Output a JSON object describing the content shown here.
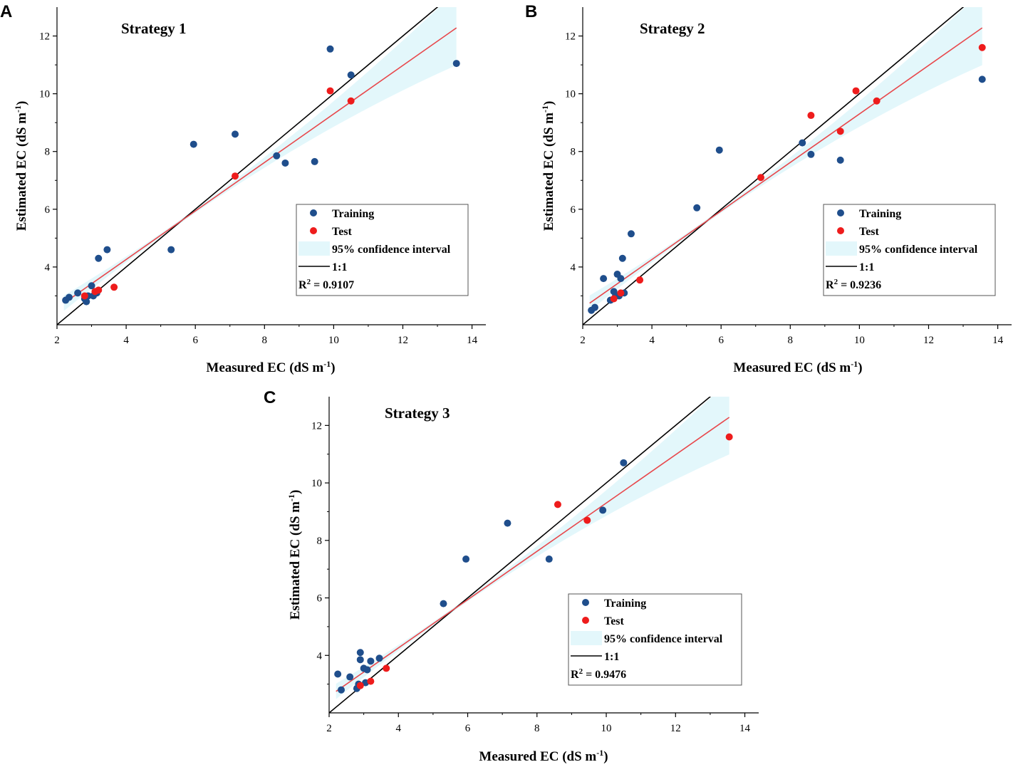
{
  "colors": {
    "training": "#1f4e8c",
    "test": "#ee1c1c",
    "fit_line": "#e8474b",
    "one_to_one": "#000000",
    "ci_fill": "#e3f7fb"
  },
  "legend_labels": {
    "training": "Training",
    "test": "Test",
    "ci": "95% confidence interval",
    "one_to_one": "1:1",
    "r2_prefix": "R",
    "r2_sup": "2"
  },
  "chart_data": [
    {
      "type": "scatter",
      "panel": "A",
      "title": "Strategy 1",
      "xlabel": "Measured EC (dS m",
      "ylabel": "Estimated EC (dS m",
      "label_sup": "-1",
      "label_close": ")",
      "xlim": [
        2,
        14.4
      ],
      "ylim": [
        2,
        13
      ],
      "xticks": [
        2,
        4,
        6,
        8,
        10,
        12,
        14
      ],
      "yticks": [
        4,
        6,
        8,
        10,
        12
      ],
      "r2": "= 0.9107",
      "fit_line": {
        "slope": 0.84,
        "intercept": 0.9
      },
      "training": [
        [
          2.25,
          2.85
        ],
        [
          2.35,
          2.95
        ],
        [
          2.6,
          3.1
        ],
        [
          2.8,
          2.9
        ],
        [
          2.85,
          2.8
        ],
        [
          2.9,
          3.0
        ],
        [
          3.0,
          3.35
        ],
        [
          3.05,
          3.0
        ],
        [
          3.15,
          3.1
        ],
        [
          3.2,
          4.3
        ],
        [
          3.45,
          4.6
        ],
        [
          5.3,
          4.6
        ],
        [
          5.95,
          8.25
        ],
        [
          7.15,
          8.6
        ],
        [
          8.35,
          7.85
        ],
        [
          8.6,
          7.6
        ],
        [
          9.45,
          7.65
        ],
        [
          9.9,
          11.55
        ],
        [
          10.5,
          10.65
        ],
        [
          13.55,
          11.05
        ]
      ],
      "test": [
        [
          2.8,
          3.0
        ],
        [
          3.1,
          3.15
        ],
        [
          3.2,
          3.2
        ],
        [
          3.65,
          3.3
        ],
        [
          7.15,
          7.15
        ],
        [
          9.9,
          10.1
        ],
        [
          10.5,
          9.75
        ]
      ]
    },
    {
      "type": "scatter",
      "panel": "B",
      "title": "Strategy 2",
      "xlabel": "Measured EC (dS m",
      "ylabel": "Estimated EC (dS m",
      "label_sup": "-1",
      "label_close": ")",
      "xlim": [
        2,
        14.4
      ],
      "ylim": [
        2,
        13
      ],
      "xticks": [
        2,
        4,
        6,
        8,
        10,
        12,
        14
      ],
      "yticks": [
        4,
        6,
        8,
        10,
        12
      ],
      "r2": "= 0.9236",
      "fit_line": {
        "slope": 0.84,
        "intercept": 0.9
      },
      "training": [
        [
          2.25,
          2.5
        ],
        [
          2.35,
          2.6
        ],
        [
          2.6,
          3.6
        ],
        [
          2.8,
          2.85
        ],
        [
          2.9,
          3.15
        ],
        [
          2.95,
          3.0
        ],
        [
          3.0,
          3.75
        ],
        [
          3.05,
          3.0
        ],
        [
          3.1,
          3.6
        ],
        [
          3.15,
          4.3
        ],
        [
          3.2,
          3.1
        ],
        [
          3.4,
          5.15
        ],
        [
          5.3,
          6.05
        ],
        [
          5.95,
          8.05
        ],
        [
          8.35,
          8.3
        ],
        [
          8.6,
          7.9
        ],
        [
          9.45,
          7.7
        ],
        [
          13.55,
          10.5
        ]
      ],
      "test": [
        [
          2.9,
          2.9
        ],
        [
          3.1,
          3.1
        ],
        [
          3.65,
          3.55
        ],
        [
          7.15,
          7.1
        ],
        [
          8.6,
          9.25
        ],
        [
          9.45,
          8.7
        ],
        [
          9.9,
          10.1
        ],
        [
          10.5,
          9.75
        ],
        [
          13.55,
          11.6
        ]
      ]
    },
    {
      "type": "scatter",
      "panel": "C",
      "title": "Strategy 3",
      "xlabel": "Measured EC (dS m",
      "ylabel": "Estimated EC (dS m",
      "label_sup": "-1",
      "label_close": ")",
      "xlim": [
        2,
        14.4
      ],
      "ylim": [
        2,
        13
      ],
      "xticks": [
        2,
        4,
        6,
        8,
        10,
        12,
        14
      ],
      "yticks": [
        4,
        6,
        8,
        10,
        12
      ],
      "r2": "= 0.9476",
      "fit_line": {
        "slope": 0.84,
        "intercept": 0.9
      },
      "training": [
        [
          2.25,
          3.35
        ],
        [
          2.35,
          2.8
        ],
        [
          2.6,
          3.25
        ],
        [
          2.8,
          2.85
        ],
        [
          2.85,
          3.0
        ],
        [
          2.9,
          3.85
        ],
        [
          2.9,
          4.1
        ],
        [
          3.0,
          3.55
        ],
        [
          3.05,
          3.05
        ],
        [
          3.1,
          3.5
        ],
        [
          3.2,
          3.8
        ],
        [
          3.45,
          3.9
        ],
        [
          5.3,
          5.8
        ],
        [
          5.95,
          7.35
        ],
        [
          7.15,
          8.6
        ],
        [
          8.35,
          7.35
        ],
        [
          9.9,
          9.05
        ],
        [
          10.5,
          10.7
        ]
      ],
      "test": [
        [
          2.9,
          2.95
        ],
        [
          3.2,
          3.1
        ],
        [
          3.65,
          3.55
        ],
        [
          8.6,
          9.25
        ],
        [
          9.45,
          8.7
        ],
        [
          13.55,
          11.6
        ]
      ]
    }
  ]
}
